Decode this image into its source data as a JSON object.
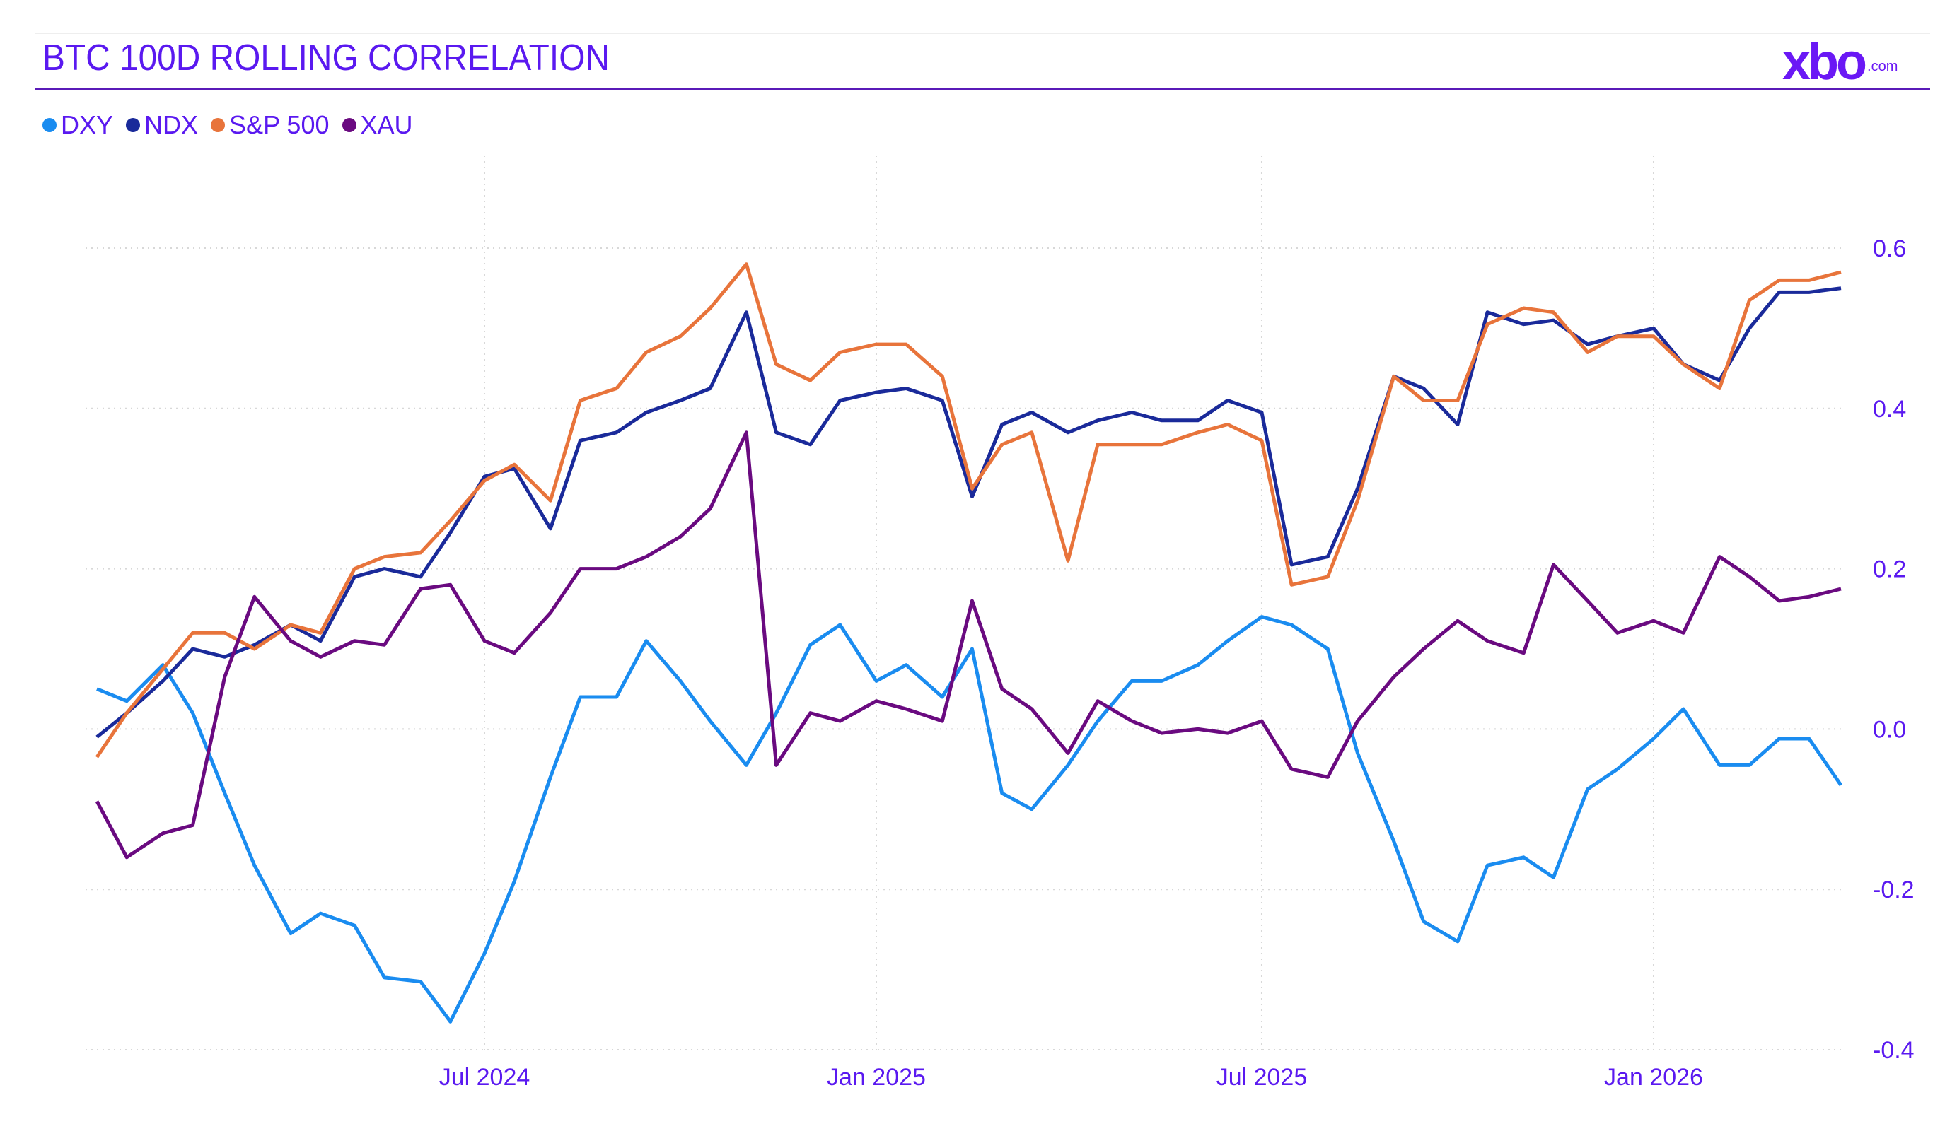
{
  "header": {
    "title": "BTC 100D ROLLING CORRELATION",
    "logo_text": "xbo",
    "logo_suffix": ".com"
  },
  "chart_data": {
    "type": "line",
    "title": "BTC 100D ROLLING CORRELATION",
    "xlabel": "",
    "ylabel": "",
    "ylim": [
      -0.4,
      0.7
    ],
    "yticks": [
      0.6,
      0.4,
      0.2,
      0.0,
      -0.2,
      -0.4
    ],
    "ytick_labels": [
      "0.6",
      "0.4",
      "0.2",
      "0.0",
      "-0.2",
      "-0.4"
    ],
    "xticks": [
      "2024-07-01",
      "2025-01-01",
      "2025-07-01",
      "2026-01-01"
    ],
    "xtick_labels": [
      "Jul 2024",
      "Jan 2025",
      "Jul 2025",
      "Jan 2026"
    ],
    "xlim": [
      "2024-01-01",
      "2026-03-30"
    ],
    "grid": true,
    "legend_position": "top-left",
    "x": [
      "2024-01-01",
      "2024-01-15",
      "2024-02-01",
      "2024-02-15",
      "2024-03-01",
      "2024-03-15",
      "2024-04-01",
      "2024-04-15",
      "2024-05-01",
      "2024-05-15",
      "2024-06-01",
      "2024-06-15",
      "2024-07-01",
      "2024-07-15",
      "2024-08-01",
      "2024-08-15",
      "2024-09-01",
      "2024-09-15",
      "2024-10-01",
      "2024-10-15",
      "2024-11-01",
      "2024-11-15",
      "2024-12-01",
      "2024-12-15",
      "2025-01-01",
      "2025-01-15",
      "2025-02-01",
      "2025-02-15",
      "2025-03-01",
      "2025-03-15",
      "2025-04-01",
      "2025-04-15",
      "2025-05-01",
      "2025-05-15",
      "2025-06-01",
      "2025-06-15",
      "2025-07-01",
      "2025-07-15",
      "2025-08-01",
      "2025-08-15",
      "2025-09-01",
      "2025-09-15",
      "2025-10-01",
      "2025-10-15",
      "2025-11-01",
      "2025-11-15",
      "2025-12-01",
      "2025-12-15",
      "2026-01-01",
      "2026-01-15",
      "2026-02-01",
      "2026-02-15",
      "2026-03-01",
      "2026-03-15",
      "2026-03-30"
    ],
    "series": [
      {
        "name": "DXY",
        "color": "#1a8cf0",
        "values": [
          0.05,
          0.035,
          0.08,
          0.02,
          -0.08,
          -0.17,
          -0.255,
          -0.23,
          -0.245,
          -0.31,
          -0.315,
          -0.365,
          -0.28,
          -0.19,
          -0.06,
          0.04,
          0.04,
          0.11,
          0.06,
          0.01,
          -0.045,
          0.02,
          0.105,
          0.13,
          0.06,
          0.08,
          0.04,
          0.1,
          -0.08,
          -0.1,
          -0.045,
          0.01,
          0.06,
          0.06,
          0.08,
          0.11,
          0.14,
          0.13,
          0.1,
          -0.03,
          -0.14,
          -0.24,
          -0.265,
          -0.17,
          -0.16,
          -0.185,
          -0.075,
          -0.05,
          -0.012,
          0.025,
          -0.045,
          -0.045,
          -0.012,
          -0.012,
          -0.07
        ]
      },
      {
        "name": "NDX",
        "color": "#1a2a9a",
        "values": [
          -0.01,
          0.02,
          0.06,
          0.1,
          0.09,
          0.105,
          0.13,
          0.11,
          0.19,
          0.2,
          0.19,
          0.245,
          0.315,
          0.325,
          0.25,
          0.36,
          0.37,
          0.395,
          0.41,
          0.425,
          0.52,
          0.37,
          0.355,
          0.41,
          0.42,
          0.425,
          0.41,
          0.29,
          0.38,
          0.395,
          0.37,
          0.385,
          0.395,
          0.385,
          0.385,
          0.41,
          0.395,
          0.205,
          0.215,
          0.3,
          0.44,
          0.425,
          0.38,
          0.52,
          0.505,
          0.51,
          0.48,
          0.49,
          0.5,
          0.455,
          0.435,
          0.5,
          0.545,
          0.545,
          0.55
        ]
      },
      {
        "name": "S&P 500",
        "color": "#e8743b",
        "values": [
          -0.035,
          0.02,
          0.075,
          0.12,
          0.12,
          0.1,
          0.13,
          0.12,
          0.2,
          0.215,
          0.22,
          0.26,
          0.31,
          0.33,
          0.285,
          0.41,
          0.425,
          0.47,
          0.49,
          0.525,
          0.58,
          0.455,
          0.435,
          0.47,
          0.48,
          0.48,
          0.44,
          0.3,
          0.355,
          0.37,
          0.21,
          0.355,
          0.355,
          0.355,
          0.37,
          0.38,
          0.36,
          0.18,
          0.19,
          0.285,
          0.44,
          0.41,
          0.41,
          0.505,
          0.525,
          0.52,
          0.47,
          0.49,
          0.49,
          0.455,
          0.425,
          0.535,
          0.56,
          0.56,
          0.57
        ]
      },
      {
        "name": "XAU",
        "color": "#6a0a80",
        "values": [
          -0.09,
          -0.16,
          -0.13,
          -0.12,
          0.065,
          0.165,
          0.11,
          0.09,
          0.11,
          0.105,
          0.175,
          0.18,
          0.11,
          0.095,
          0.145,
          0.2,
          0.2,
          0.215,
          0.24,
          0.275,
          0.37,
          -0.045,
          0.02,
          0.01,
          0.035,
          0.025,
          0.01,
          0.16,
          0.05,
          0.025,
          -0.03,
          0.035,
          0.01,
          -0.005,
          0.0,
          -0.005,
          0.01,
          -0.05,
          -0.06,
          0.01,
          0.065,
          0.1,
          0.135,
          0.11,
          0.095,
          0.205,
          0.16,
          0.12,
          0.135,
          0.12,
          0.215,
          0.19,
          0.16,
          0.165,
          0.175
        ]
      }
    ]
  }
}
